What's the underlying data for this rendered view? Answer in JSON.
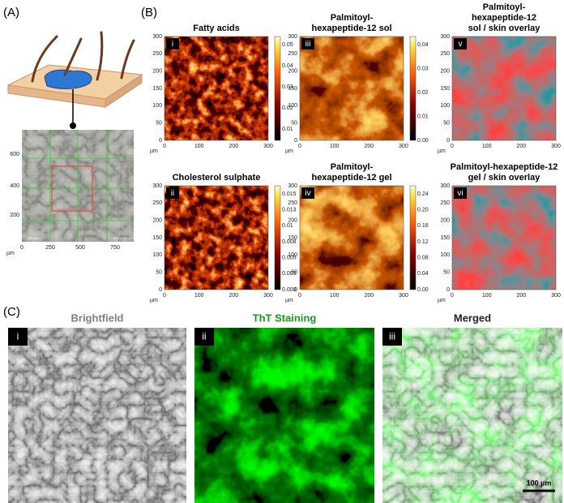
{
  "panel_a": {
    "label": "(A)",
    "y_ticks": [
      "200",
      "400",
      "600"
    ],
    "x_ticks": [
      "0",
      "250",
      "500",
      "750"
    ],
    "unit": "µm",
    "scale_bar": "100 µm",
    "field_size": "600 × 757 µm"
  },
  "panel_b": {
    "label": "(B)",
    "axis_ticks": [
      "0",
      "100",
      "200",
      "300"
    ],
    "y_ticks": [
      "0",
      "50",
      "100",
      "150",
      "200",
      "250",
      "300"
    ],
    "unit": "µm",
    "maps": [
      {
        "numeral": "i",
        "title_lines": [
          "Fatty acids"
        ],
        "colorbar": [
          "0.05",
          "0.04",
          "0.03",
          "0.02",
          "0.01"
        ]
      },
      {
        "numeral": "ii",
        "title_lines": [
          "Cholesterol sulphate"
        ],
        "colorbar": [
          "0.015",
          "0.013",
          "0.01",
          "0.008",
          "0.005",
          "0.003",
          "0.000"
        ]
      },
      {
        "numeral": "iii",
        "title_lines": [
          "Palmitoyl-",
          "hexapeptide-12  sol"
        ],
        "colorbar": [
          "0.04",
          "0.03",
          "0.02",
          "0.01",
          "0.00"
        ]
      },
      {
        "numeral": "iv",
        "title_lines": [
          "Palmitoyl-",
          "hexapeptide-12  gel"
        ],
        "colorbar": [
          "0.24",
          "0.20",
          "0.16",
          "0.12",
          "0.08",
          "0.04",
          "0.00"
        ]
      },
      {
        "numeral": "v",
        "title_lines": [
          "Palmitoyl-",
          "hexapeptide-12",
          "sol / skin overlay"
        ]
      },
      {
        "numeral": "vi",
        "title_lines": [
          "Palmitoyl-hexapeptide-12",
          "gel / skin overlay"
        ]
      }
    ]
  },
  "panel_c": {
    "label": "(C)",
    "scale_bar": "100 µm",
    "images": [
      {
        "numeral": "i",
        "title": "Brightfield"
      },
      {
        "numeral": "ii",
        "title": "ThT Staining"
      },
      {
        "numeral": "iii",
        "title": "Merged"
      }
    ]
  }
}
